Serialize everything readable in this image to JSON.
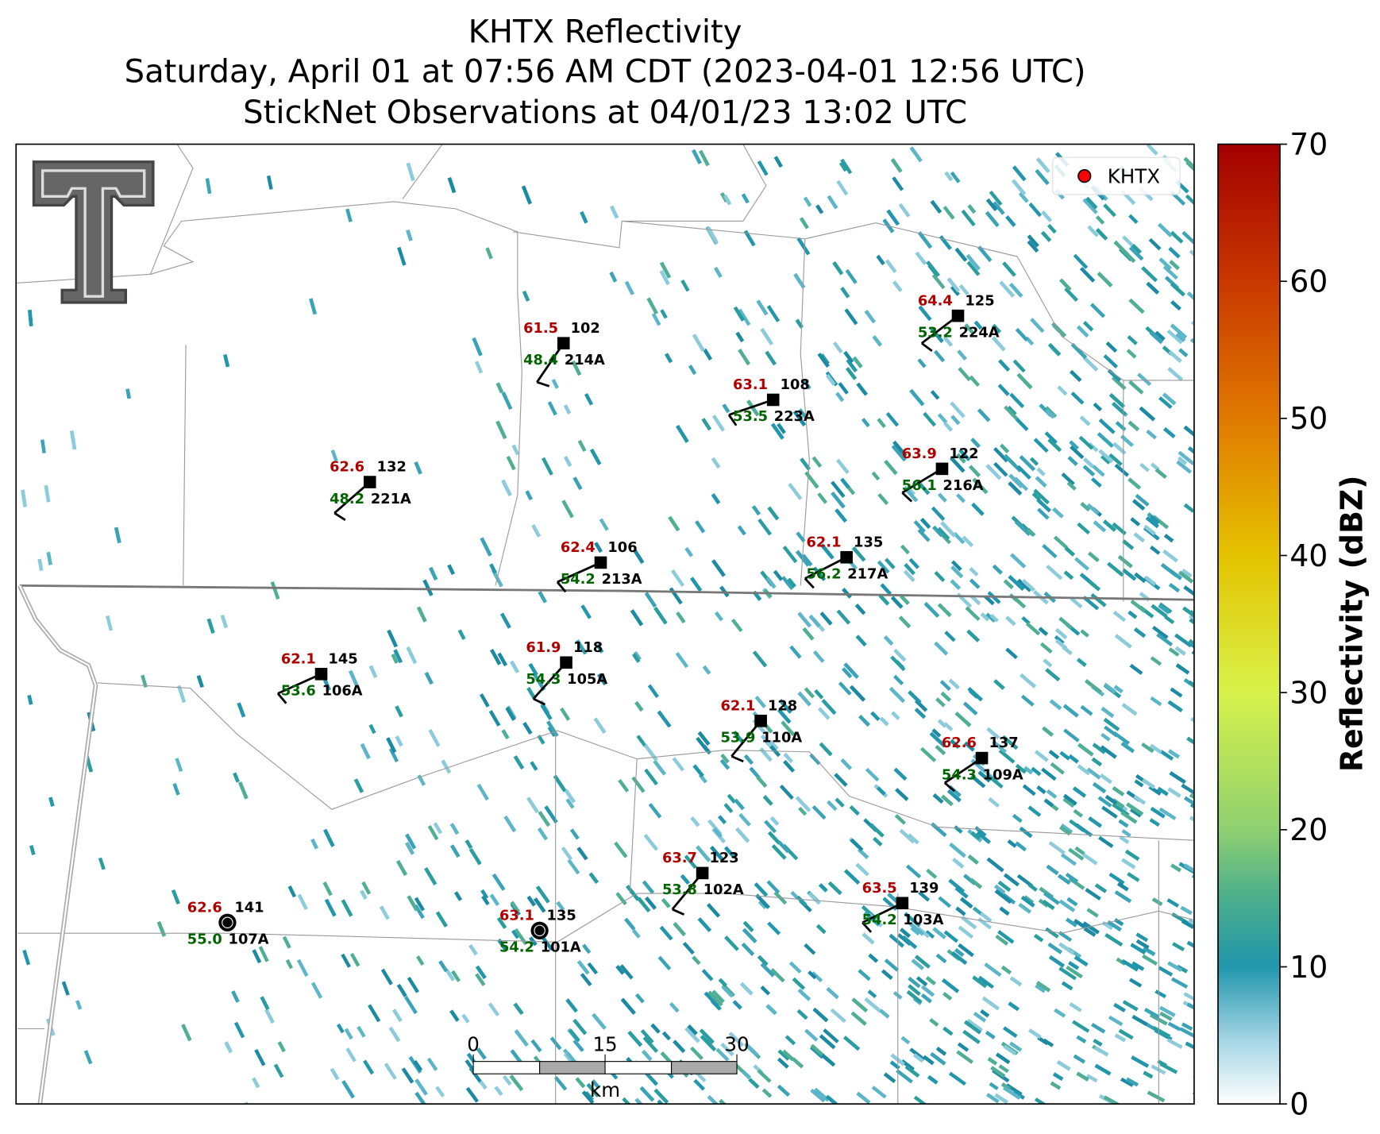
{
  "title": {
    "lines": [
      "KHTX Reflectivity",
      "Saturday, April 01 at 07:56 AM CDT (2023-04-01 12:56 UTC)",
      "StickNet Observations at 04/01/23 13:02 UTC"
    ]
  },
  "legend": {
    "label": "KHTX"
  },
  "colorbar": {
    "label": "Reflectivity (dBZ)",
    "lim": [
      0,
      70
    ],
    "ticks": [
      0,
      10,
      20,
      30,
      40,
      50,
      60,
      70
    ]
  },
  "scale_bar": {
    "ticks": [
      0,
      15,
      30
    ],
    "unit": "km"
  },
  "stations": [
    {
      "id": "214A",
      "temperature": "61.5",
      "dewpoint": "48.4",
      "value": "102"
    },
    {
      "id": "223A",
      "temperature": "63.1",
      "dewpoint": "53.5",
      "value": "108"
    },
    {
      "id": "224A",
      "temperature": "64.4",
      "dewpoint": "53.2",
      "value": "125"
    },
    {
      "id": "221A",
      "temperature": "62.6",
      "dewpoint": "48.2",
      "value": "132"
    },
    {
      "id": "216A",
      "temperature": "63.9",
      "dewpoint": "56.1",
      "value": "122"
    },
    {
      "id": "213A",
      "temperature": "62.4",
      "dewpoint": "54.2",
      "value": "106"
    },
    {
      "id": "217A",
      "temperature": "62.1",
      "dewpoint": "56.2",
      "value": "135"
    },
    {
      "id": "106A",
      "temperature": "62.1",
      "dewpoint": "53.6",
      "value": "145"
    },
    {
      "id": "105A",
      "temperature": "61.9",
      "dewpoint": "54.3",
      "value": "118"
    },
    {
      "id": "110A",
      "temperature": "62.1",
      "dewpoint": "53.9",
      "value": "128"
    },
    {
      "id": "109A",
      "temperature": "62.6",
      "dewpoint": "54.3",
      "value": "137"
    },
    {
      "id": "102A",
      "temperature": "63.7",
      "dewpoint": "53.8",
      "value": "123"
    },
    {
      "id": "103A",
      "temperature": "63.5",
      "dewpoint": "54.2",
      "value": "139"
    },
    {
      "id": "107A",
      "temperature": "62.6",
      "dewpoint": "55.0",
      "value": "141"
    },
    {
      "id": "101A",
      "temperature": "63.1",
      "dewpoint": "54.2",
      "value": "135"
    }
  ]
}
